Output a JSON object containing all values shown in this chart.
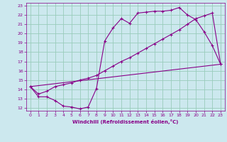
{
  "xlabel": "Windchill (Refroidissement éolien,°C)",
  "bg_color": "#cce8ee",
  "line_color": "#880088",
  "grid_color": "#99ccbb",
  "xlim": [
    -0.5,
    23.5
  ],
  "ylim": [
    11.7,
    23.3
  ],
  "yticks": [
    12,
    13,
    14,
    15,
    16,
    17,
    18,
    19,
    20,
    21,
    22,
    23
  ],
  "xticks": [
    0,
    1,
    2,
    3,
    4,
    5,
    6,
    7,
    8,
    9,
    10,
    11,
    12,
    13,
    14,
    15,
    16,
    17,
    18,
    19,
    20,
    21,
    22,
    23
  ],
  "curve1_x": [
    0,
    1,
    2,
    3,
    4,
    5,
    6,
    7,
    8,
    9,
    10,
    11,
    12,
    13,
    14,
    15,
    16,
    17,
    18,
    19,
    20,
    21,
    22,
    23
  ],
  "curve1_y": [
    14.3,
    13.2,
    13.2,
    12.8,
    12.2,
    12.1,
    11.9,
    12.1,
    14.1,
    19.2,
    20.6,
    21.6,
    21.1,
    22.2,
    22.3,
    22.4,
    22.4,
    22.5,
    22.8,
    22.0,
    21.5,
    20.2,
    18.7,
    16.7
  ],
  "curve2_x": [
    0,
    1,
    2,
    3,
    4,
    5,
    6,
    7,
    8,
    9,
    10,
    11,
    12,
    13,
    14,
    15,
    16,
    17,
    18,
    19,
    20,
    21,
    22,
    23
  ],
  "curve2_y": [
    14.3,
    13.5,
    13.8,
    14.3,
    14.5,
    14.7,
    15.0,
    15.2,
    15.5,
    16.0,
    16.5,
    17.0,
    17.4,
    17.9,
    18.4,
    18.9,
    19.4,
    19.9,
    20.4,
    21.0,
    21.6,
    21.9,
    22.2,
    16.7
  ],
  "curve3_x": [
    0,
    23
  ],
  "curve3_y": [
    14.3,
    16.7
  ]
}
